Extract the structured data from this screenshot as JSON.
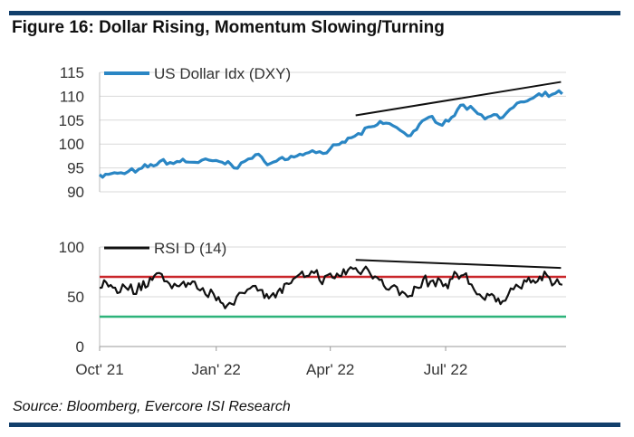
{
  "figure": {
    "title": "Figure 16: Dollar Rising, Momentum Slowing/Turning",
    "source": "Source: Bloomberg, Evercore ISI Research"
  },
  "colors": {
    "rule": "#123f6b",
    "dxy": "#2a86c4",
    "rsi": "#111111",
    "overbought": "#c9262a",
    "oversold": "#2db37a",
    "trend": "#111111",
    "grid": "#d9d9d9"
  },
  "chart_data": [
    {
      "type": "line",
      "legend": "top-left",
      "ylim": [
        90,
        115
      ],
      "yticks": [
        "90",
        "95",
        "100",
        "105",
        "110",
        "115"
      ],
      "grid": true,
      "series": [
        {
          "name": "US Dollar Idx (DXY)",
          "x": [
            "2021-10-01",
            "2021-10-15",
            "2021-11-01",
            "2021-11-15",
            "2021-12-01",
            "2021-12-15",
            "2022-01-01",
            "2022-01-15",
            "2022-02-01",
            "2022-02-15",
            "2022-03-01",
            "2022-03-15",
            "2022-04-01",
            "2022-04-15",
            "2022-05-01",
            "2022-05-15",
            "2022-06-01",
            "2022-06-15",
            "2022-07-01",
            "2022-07-15",
            "2022-08-01",
            "2022-08-15",
            "2022-09-01",
            "2022-09-15",
            "2022-10-01"
          ],
          "values": [
            93.8,
            93.6,
            94.2,
            95.9,
            96.3,
            96.4,
            96.0,
            95.6,
            97.3,
            96.1,
            97.4,
            98.8,
            98.4,
            100.8,
            102.9,
            104.5,
            101.8,
            104.8,
            105.0,
            108.2,
            106.1,
            106.2,
            108.8,
            109.8,
            110.5
          ]
        }
      ],
      "trendline": {
        "x": [
          "2022-04-21",
          "2022-09-30"
        ],
        "values": [
          106.0,
          113.0
        ]
      }
    },
    {
      "type": "line",
      "legend": "top-left",
      "ylim": [
        0,
        100
      ],
      "yticks": [
        "0",
        "50",
        "100"
      ],
      "xticks": [
        "Oct' 21",
        "Jan' 22",
        "Apr' 22",
        "Jul' 22"
      ],
      "grid": true,
      "series": [
        {
          "name": "RSI D (14)",
          "x": [
            "2021-10-01",
            "2021-10-15",
            "2021-11-01",
            "2021-11-15",
            "2021-12-01",
            "2021-12-15",
            "2022-01-01",
            "2022-01-15",
            "2022-02-01",
            "2022-02-15",
            "2022-03-01",
            "2022-03-15",
            "2022-04-01",
            "2022-04-15",
            "2022-05-01",
            "2022-05-15",
            "2022-06-01",
            "2022-06-15",
            "2022-07-01",
            "2022-07-15",
            "2022-08-01",
            "2022-08-15",
            "2022-09-01",
            "2022-09-15",
            "2022-10-01"
          ],
          "values": [
            63,
            55,
            60,
            70,
            62,
            57,
            50,
            42,
            64,
            50,
            65,
            70,
            68,
            76,
            78,
            65,
            47,
            65,
            60,
            74,
            47,
            50,
            64,
            68,
            62
          ]
        }
      ],
      "overbought": 70,
      "oversold": 30,
      "trendline": {
        "x": [
          "2022-04-21",
          "2022-09-30"
        ],
        "values": [
          87,
          79
        ]
      }
    }
  ]
}
